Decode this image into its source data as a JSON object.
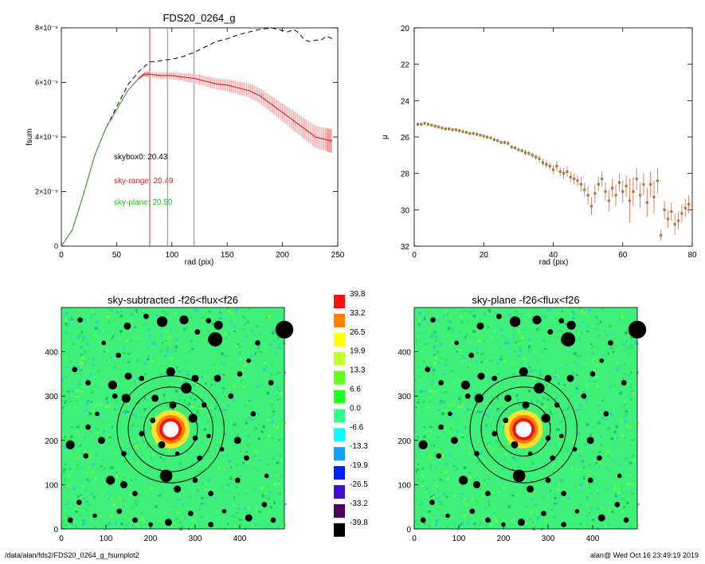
{
  "chart_data": [
    {
      "type": "line",
      "title": "FDS20_0264_g",
      "xlabel": "rad (pix)",
      "ylabel": "fsum",
      "xlim": [
        0,
        250
      ],
      "ylim": [
        0,
        8e-09
      ],
      "x_ticks": [
        0,
        50,
        100,
        150,
        200,
        250
      ],
      "y_ticks": [
        {
          "value": 0,
          "label": "0"
        },
        {
          "value": 2e-09,
          "label": "2×10⁻⁹"
        },
        {
          "value": 4e-09,
          "label": "4×10⁻⁹"
        },
        {
          "value": 6e-09,
          "label": "6×10⁻⁹"
        },
        {
          "value": 8e-09,
          "label": "8×10⁻⁹"
        }
      ],
      "vertical_lines": [
        {
          "x": 80,
          "color": "#e03030"
        },
        {
          "x": 96,
          "color": "#888888"
        },
        {
          "x": 120,
          "color": "#888888"
        }
      ],
      "annotations": [
        {
          "text": "skybox0: 20.43",
          "color": "#000000"
        },
        {
          "text": "sky-range: 20.49",
          "color": "#e02020"
        },
        {
          "text": "sky-plane: 20.50",
          "color": "#20c020"
        }
      ],
      "series": [
        {
          "style": "dashed",
          "color": "#000000",
          "x": [
            0,
            10,
            20,
            30,
            40,
            50,
            60,
            70,
            80,
            90,
            100,
            110,
            120,
            130,
            140,
            150,
            160,
            170,
            180,
            190,
            200,
            205,
            210,
            215,
            220,
            225,
            230,
            235,
            240,
            245
          ],
          "y": [
            0,
            6e-10,
            1.9e-09,
            3.3e-09,
            4.3e-09,
            5.1e-09,
            5.9e-09,
            6.4e-09,
            6.75e-09,
            6.8e-09,
            6.85e-09,
            6.95e-09,
            7.1e-09,
            7.3e-09,
            7.5e-09,
            7.6e-09,
            7.75e-09,
            7.85e-09,
            7.95e-09,
            8e-09,
            7.9e-09,
            7.85e-09,
            7.95e-09,
            7.8e-09,
            7.55e-09,
            7.5e-09,
            7.55e-09,
            7.55e-09,
            7.7e-09,
            7.6e-09
          ]
        },
        {
          "style": "solid",
          "color": "#d01010",
          "band_color": "#f09090",
          "x": [
            0,
            10,
            20,
            30,
            40,
            50,
            60,
            70,
            75,
            80,
            90,
            100,
            110,
            120,
            130,
            140,
            150,
            160,
            170,
            180,
            190,
            200,
            210,
            220,
            230,
            240,
            245
          ],
          "y": [
            0,
            6e-10,
            1.9e-09,
            3.3e-09,
            4.3e-09,
            5e-09,
            5.7e-09,
            6.15e-09,
            6.3e-09,
            6.3e-09,
            6.25e-09,
            6.25e-09,
            6.2e-09,
            6.15e-09,
            6.05e-09,
            5.95e-09,
            5.9e-09,
            5.8e-09,
            5.7e-09,
            5.5e-09,
            5.2e-09,
            4.9e-09,
            4.6e-09,
            4.3e-09,
            4e-09,
            3.9e-09,
            3.85e-09
          ],
          "err": [
            0,
            0,
            0,
            0,
            0,
            0,
            0,
            5e-11,
            8e-11,
            1e-10,
            1.2e-10,
            1.3e-10,
            1.5e-10,
            1.7e-10,
            1.9e-10,
            2e-10,
            2.2e-10,
            2.4e-10,
            2.6e-10,
            2.8e-10,
            3e-10,
            3.3e-10,
            3.6e-10,
            3.8e-10,
            4e-10,
            4.2e-10,
            4.4e-10
          ]
        },
        {
          "style": "solid",
          "color": "#40b040",
          "x": [
            0,
            10,
            20,
            30,
            40,
            50,
            60,
            70
          ],
          "y": [
            0,
            6e-10,
            1.9e-09,
            3.3e-09,
            4.3e-09,
            5e-09,
            5.7e-09,
            6.15e-09
          ]
        }
      ]
    },
    {
      "type": "scatter",
      "title": "",
      "xlabel": "rad (pix)",
      "ylabel": "μ",
      "xlim": [
        0,
        80
      ],
      "ylim": [
        32,
        20
      ],
      "x_ticks": [
        0,
        20,
        40,
        60,
        80
      ],
      "y_ticks": [
        20,
        22,
        24,
        26,
        28,
        30,
        32
      ],
      "points": [
        {
          "x": 1,
          "y": 25.3,
          "e": 0.1
        },
        {
          "x": 2,
          "y": 25.3,
          "e": 0.1
        },
        {
          "x": 3,
          "y": 25.25,
          "e": 0.1
        },
        {
          "x": 4,
          "y": 25.3,
          "e": 0.1
        },
        {
          "x": 5,
          "y": 25.35,
          "e": 0.1
        },
        {
          "x": 6,
          "y": 25.4,
          "e": 0.1
        },
        {
          "x": 7,
          "y": 25.45,
          "e": 0.1
        },
        {
          "x": 8,
          "y": 25.5,
          "e": 0.1
        },
        {
          "x": 9,
          "y": 25.55,
          "e": 0.1
        },
        {
          "x": 10,
          "y": 25.55,
          "e": 0.1
        },
        {
          "x": 11,
          "y": 25.6,
          "e": 0.1
        },
        {
          "x": 12,
          "y": 25.6,
          "e": 0.1
        },
        {
          "x": 13,
          "y": 25.65,
          "e": 0.1
        },
        {
          "x": 14,
          "y": 25.7,
          "e": 0.1
        },
        {
          "x": 15,
          "y": 25.75,
          "e": 0.1
        },
        {
          "x": 16,
          "y": 25.8,
          "e": 0.1
        },
        {
          "x": 17,
          "y": 25.8,
          "e": 0.1
        },
        {
          "x": 18,
          "y": 25.85,
          "e": 0.1
        },
        {
          "x": 19,
          "y": 25.9,
          "e": 0.1
        },
        {
          "x": 20,
          "y": 25.95,
          "e": 0.1
        },
        {
          "x": 21,
          "y": 26.0,
          "e": 0.1
        },
        {
          "x": 22,
          "y": 26.05,
          "e": 0.1
        },
        {
          "x": 23,
          "y": 26.15,
          "e": 0.1
        },
        {
          "x": 24,
          "y": 26.2,
          "e": 0.1
        },
        {
          "x": 25,
          "y": 26.3,
          "e": 0.1
        },
        {
          "x": 26,
          "y": 26.3,
          "e": 0.1
        },
        {
          "x": 27,
          "y": 26.35,
          "e": 0.1
        },
        {
          "x": 28,
          "y": 26.55,
          "e": 0.1
        },
        {
          "x": 29,
          "y": 26.6,
          "e": 0.1
        },
        {
          "x": 30,
          "y": 26.7,
          "e": 0.1
        },
        {
          "x": 31,
          "y": 26.75,
          "e": 0.1
        },
        {
          "x": 32,
          "y": 26.85,
          "e": 0.15
        },
        {
          "x": 33,
          "y": 26.9,
          "e": 0.15
        },
        {
          "x": 34,
          "y": 27.0,
          "e": 0.15
        },
        {
          "x": 35,
          "y": 27.1,
          "e": 0.15
        },
        {
          "x": 36,
          "y": 27.2,
          "e": 0.2
        },
        {
          "x": 37,
          "y": 27.4,
          "e": 0.2
        },
        {
          "x": 38,
          "y": 27.5,
          "e": 0.2
        },
        {
          "x": 39,
          "y": 27.6,
          "e": 0.2
        },
        {
          "x": 40,
          "y": 27.8,
          "e": 0.25
        },
        {
          "x": 41,
          "y": 27.6,
          "e": 0.25
        },
        {
          "x": 42,
          "y": 27.9,
          "e": 0.25
        },
        {
          "x": 43,
          "y": 28.0,
          "e": 0.3
        },
        {
          "x": 44,
          "y": 27.9,
          "e": 0.3
        },
        {
          "x": 45,
          "y": 28.2,
          "e": 0.3
        },
        {
          "x": 46,
          "y": 28.3,
          "e": 0.3
        },
        {
          "x": 47,
          "y": 28.4,
          "e": 0.3
        },
        {
          "x": 48,
          "y": 28.6,
          "e": 0.4
        },
        {
          "x": 49,
          "y": 28.9,
          "e": 0.4
        },
        {
          "x": 50,
          "y": 29.2,
          "e": 0.5
        },
        {
          "x": 51,
          "y": 29.8,
          "e": 0.5
        },
        {
          "x": 52,
          "y": 29.1,
          "e": 0.5
        },
        {
          "x": 53,
          "y": 28.6,
          "e": 0.4
        },
        {
          "x": 54,
          "y": 28.3,
          "e": 0.4
        },
        {
          "x": 55,
          "y": 29.0,
          "e": 0.5
        },
        {
          "x": 56,
          "y": 29.5,
          "e": 0.6
        },
        {
          "x": 57,
          "y": 28.8,
          "e": 0.5
        },
        {
          "x": 58,
          "y": 29.2,
          "e": 0.6
        },
        {
          "x": 59,
          "y": 28.5,
          "e": 0.5
        },
        {
          "x": 60,
          "y": 29.0,
          "e": 0.6
        },
        {
          "x": 61,
          "y": 28.7,
          "e": 0.6
        },
        {
          "x": 62,
          "y": 29.5,
          "e": 1.2
        },
        {
          "x": 63,
          "y": 29.0,
          "e": 0.8
        },
        {
          "x": 64,
          "y": 28.3,
          "e": 0.6
        },
        {
          "x": 65,
          "y": 29.2,
          "e": 0.7
        },
        {
          "x": 66,
          "y": 28.6,
          "e": 0.6
        },
        {
          "x": 67,
          "y": 29.6,
          "e": 0.8
        },
        {
          "x": 68,
          "y": 28.6,
          "e": 0.7
        },
        {
          "x": 69,
          "y": 29.3,
          "e": 0.9
        },
        {
          "x": 70,
          "y": 28.4,
          "e": 0.7
        },
        {
          "x": 71,
          "y": 31.4,
          "e": 0.3
        },
        {
          "x": 72,
          "y": 30.0,
          "e": 0.5
        },
        {
          "x": 73,
          "y": 30.5,
          "e": 0.5
        },
        {
          "x": 74,
          "y": 30.1,
          "e": 0.5
        },
        {
          "x": 75,
          "y": 30.8,
          "e": 0.6
        },
        {
          "x": 76,
          "y": 30.6,
          "e": 0.5
        },
        {
          "x": 77,
          "y": 30.2,
          "e": 0.5
        },
        {
          "x": 78,
          "y": 29.9,
          "e": 0.5
        },
        {
          "x": 79,
          "y": 29.7,
          "e": 0.5
        }
      ]
    },
    {
      "type": "heatmap",
      "title": "sky-subtracted -f26<flux<f26",
      "xlim": [
        0,
        500
      ],
      "ylim": [
        0,
        500
      ],
      "x_ticks": [
        0,
        100,
        200,
        300,
        400
      ],
      "y_ticks": [
        0,
        100,
        200,
        300,
        400
      ],
      "center": [
        245,
        225
      ],
      "aperture_radii": [
        60,
        95,
        120
      ]
    },
    {
      "type": "heatmap",
      "title": "sky-plane -f26<flux<f26",
      "xlim": [
        0,
        500
      ],
      "ylim": [
        0,
        500
      ],
      "x_ticks": [
        0,
        100,
        200,
        300,
        400
      ],
      "y_ticks": [
        0,
        100,
        200,
        300,
        400
      ],
      "center": [
        245,
        225
      ],
      "aperture_radii": [
        60,
        95,
        120
      ]
    }
  ],
  "colorbar": {
    "labels": [
      "39.8",
      "33.2",
      "26.5",
      "19.9",
      "13.3",
      "6.6",
      "0.0",
      "-6.6",
      "-13.3",
      "-19.9",
      "-26.5",
      "-33.2",
      "-39.8"
    ],
    "colors": [
      "#ff1010",
      "#ff8000",
      "#ffff00",
      "#c0ff30",
      "#60ff20",
      "#20ff20",
      "#30ff90",
      "#00ffff",
      "#10a0ff",
      "#0020ff",
      "#4010d0",
      "#500060",
      "#000000"
    ]
  },
  "footer": {
    "left": "/data/alan/fds2/FDS20_0264_g_fsumplot2",
    "right": "alan@  Wed Oct 16 23:49:19 2019"
  }
}
